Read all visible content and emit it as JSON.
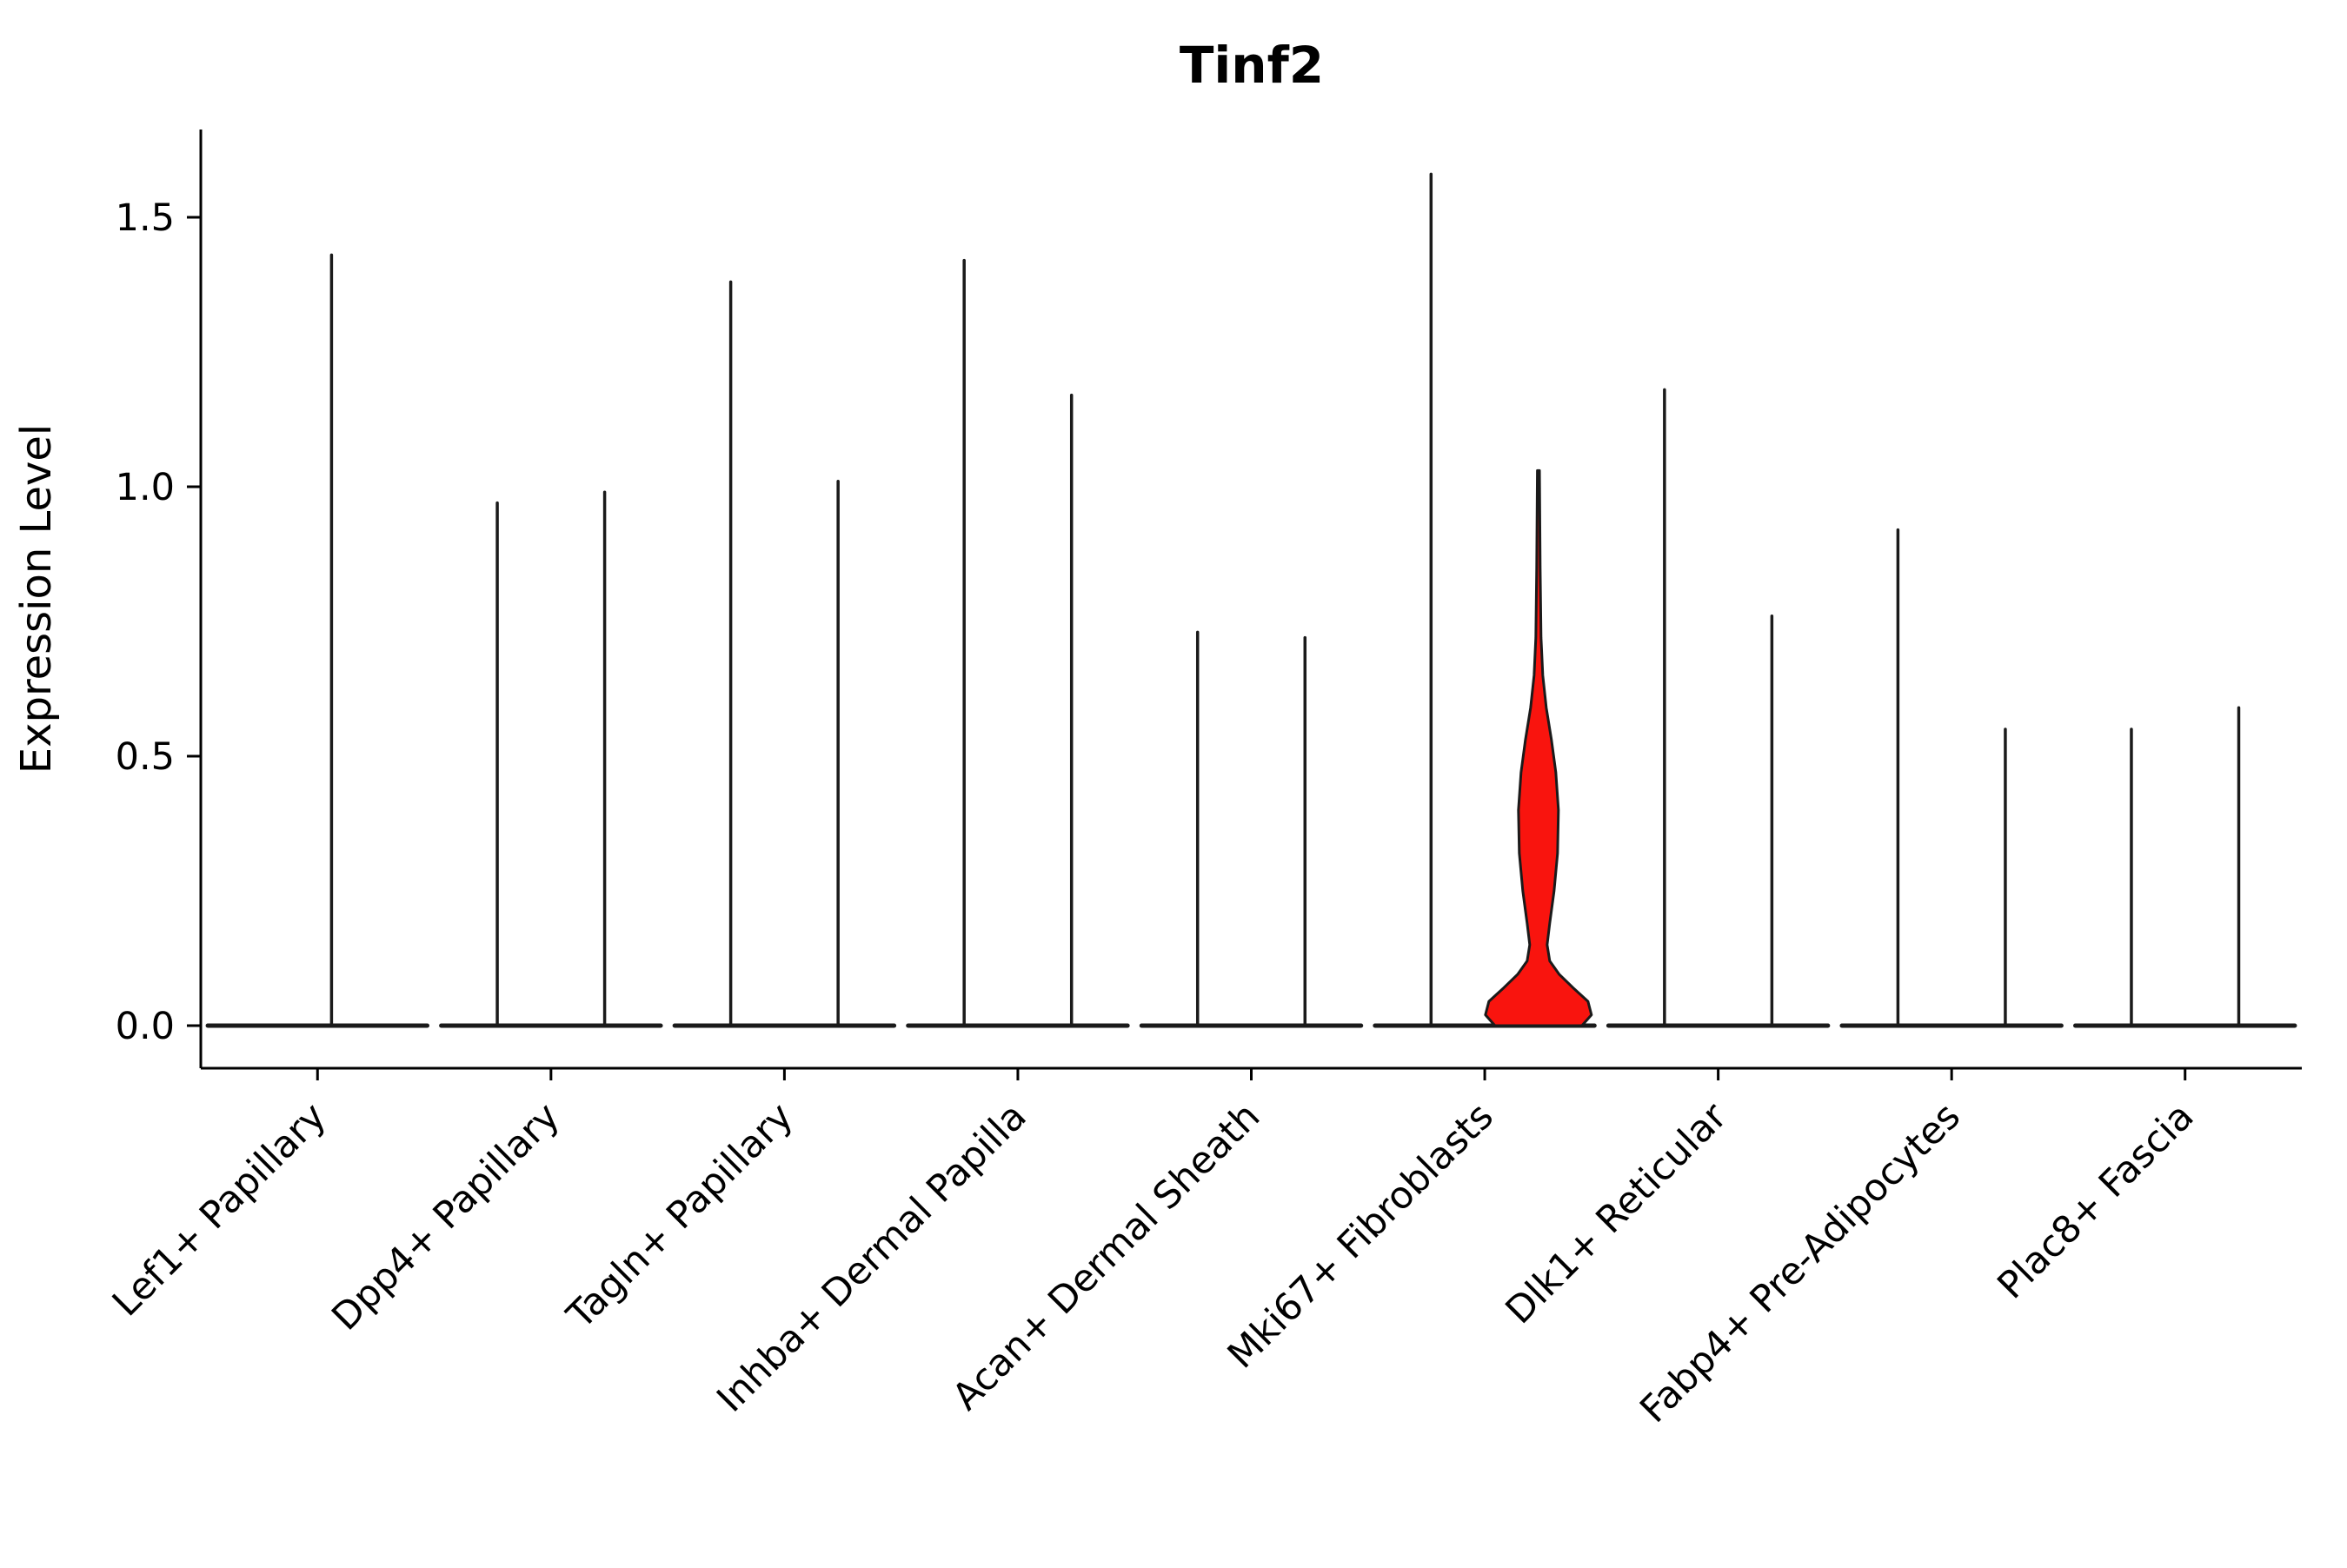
{
  "figure": {
    "title": "Tinf2",
    "ylabel": "Expression Level"
  },
  "chart_data": {
    "type": "violin",
    "title": "Tinf2",
    "xlabel": "",
    "ylabel": "Expression Level",
    "ylim": [
      -0.08,
      1.66
    ],
    "grid": false,
    "legend": "none",
    "yticks": [
      "0.0",
      "0.5",
      "1.0",
      "1.5"
    ],
    "ytick_values": [
      0,
      0.5,
      1.0,
      1.5
    ],
    "categories": [
      "Lef1+ Papillary",
      "Dpp4+ Papillary",
      "Tagln+ Papillary",
      "Inhba+ Dermal Papilla",
      "Acan+ Dermal Sheath",
      "Mki67+ Fibroblasts",
      "Dlk1+ Reticular",
      "Fabp4+ Pre-Adipocytes",
      "Plac8+ Fascia"
    ],
    "line_color": "#1a1a1a",
    "highlight_fill": "#f9140e",
    "violins": [
      {
        "category": 0,
        "offset": 0.06,
        "max": 1.43
      },
      {
        "category": 1,
        "offset": -0.23,
        "max": 0.97
      },
      {
        "category": 1,
        "offset": 0.23,
        "max": 0.99
      },
      {
        "category": 2,
        "offset": -0.23,
        "max": 1.38
      },
      {
        "category": 2,
        "offset": 0.23,
        "max": 1.01
      },
      {
        "category": 3,
        "offset": -0.23,
        "max": 1.42
      },
      {
        "category": 3,
        "offset": 0.23,
        "max": 1.17
      },
      {
        "category": 4,
        "offset": -0.23,
        "max": 0.73
      },
      {
        "category": 4,
        "offset": 0.23,
        "max": 0.72
      },
      {
        "category": 5,
        "offset": -0.23,
        "max": 1.58
      },
      {
        "category": 6,
        "offset": -0.23,
        "max": 1.18
      },
      {
        "category": 6,
        "offset": 0.23,
        "max": 0.76
      },
      {
        "category": 7,
        "offset": -0.23,
        "max": 0.92
      },
      {
        "category": 7,
        "offset": 0.23,
        "max": 0.55
      },
      {
        "category": 8,
        "offset": -0.23,
        "max": 0.55
      },
      {
        "category": 8,
        "offset": 0.23,
        "max": 0.59
      }
    ],
    "highlight_violin": {
      "category": 5,
      "offset": 0.23,
      "max": 1.03,
      "profile": [
        [
          0.0,
          50
        ],
        [
          0.02,
          61
        ],
        [
          0.045,
          57
        ],
        [
          0.07,
          40
        ],
        [
          0.095,
          24
        ],
        [
          0.12,
          13
        ],
        [
          0.15,
          10
        ],
        [
          0.19,
          13
        ],
        [
          0.25,
          18
        ],
        [
          0.32,
          22
        ],
        [
          0.4,
          23
        ],
        [
          0.47,
          20
        ],
        [
          0.53,
          15
        ],
        [
          0.59,
          9
        ],
        [
          0.65,
          5
        ],
        [
          0.72,
          3
        ],
        [
          0.85,
          2
        ],
        [
          1.03,
          1.2
        ]
      ]
    }
  }
}
